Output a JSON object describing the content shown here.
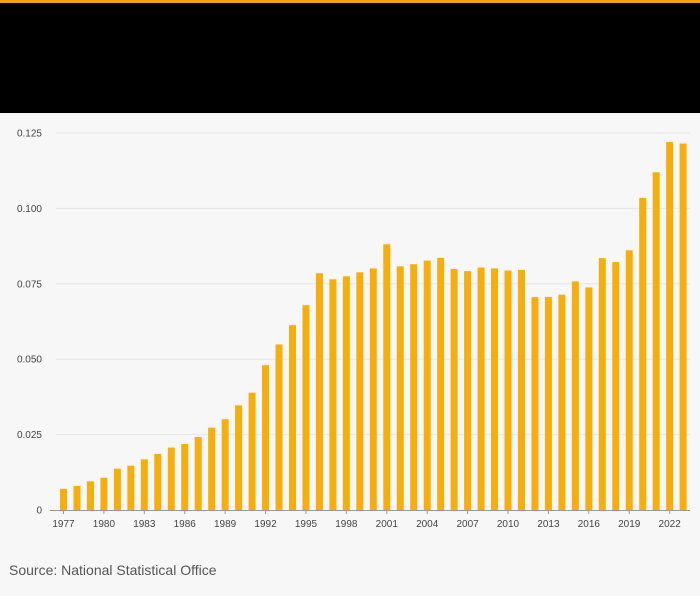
{
  "source": "Source: National Statistical Office",
  "colors": {
    "bar": "#f5ae0b",
    "accent": "#f0a800",
    "grid": "#e6e6e6",
    "axis": "#999999",
    "header": "#000000"
  },
  "chart_data": {
    "type": "bar",
    "title": "",
    "xlabel": "",
    "ylabel": "",
    "ylim": [
      0,
      0.125
    ],
    "yticks": [
      0,
      0.025,
      0.05,
      0.075,
      0.1,
      0.125
    ],
    "ytick_labels": [
      "0",
      "0.025",
      "0.050",
      "0.075",
      "0.100",
      "0.125"
    ],
    "grid": true,
    "legend": "none",
    "categories": [
      "1977",
      "1978",
      "1979",
      "1980",
      "1981",
      "1982",
      "1983",
      "1984",
      "1985",
      "1986",
      "1987",
      "1988",
      "1989",
      "1990",
      "1991",
      "1992",
      "1993",
      "1994",
      "1995",
      "1996",
      "1997",
      "1998",
      "1999",
      "2000",
      "2001",
      "2002",
      "2003",
      "2004",
      "2005",
      "2006",
      "2007",
      "2008",
      "2009",
      "2010",
      "2011",
      "2012",
      "2013",
      "2014",
      "2015",
      "2016",
      "2017",
      "2018",
      "2019",
      "2020",
      "2021",
      "2022",
      "2023"
    ],
    "xtick_labels": [
      "1977",
      "1980",
      "1983",
      "1986",
      "1989",
      "1992",
      "1995",
      "1998",
      "2001",
      "2004",
      "2007",
      "2010",
      "2013",
      "2016",
      "2019",
      "2022"
    ],
    "values": [
      0.007,
      0.008,
      0.0095,
      0.0107,
      0.0137,
      0.0147,
      0.0168,
      0.0186,
      0.0207,
      0.0219,
      0.0242,
      0.0273,
      0.0301,
      0.0347,
      0.0389,
      0.048,
      0.0549,
      0.0613,
      0.0679,
      0.0785,
      0.0765,
      0.0775,
      0.0788,
      0.0801,
      0.0881,
      0.0808,
      0.0815,
      0.0827,
      0.0836,
      0.0799,
      0.0792,
      0.0804,
      0.0801,
      0.0794,
      0.0796,
      0.0706,
      0.0706,
      0.0714,
      0.0758,
      0.0738,
      0.0835,
      0.0822,
      0.0861,
      0.1035,
      0.112,
      0.122,
      0.1215
    ]
  }
}
